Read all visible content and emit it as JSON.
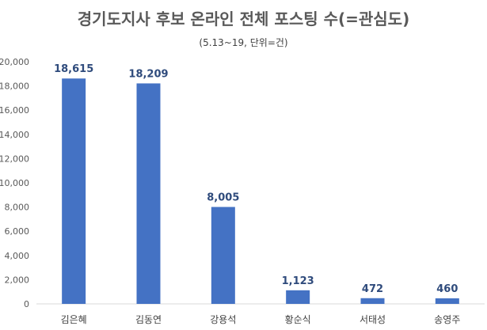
{
  "chart_data": {
    "type": "bar",
    "title": "경기도지사 후보 온라인 전체 포스팅 수(=관심도)",
    "subtitle": "(5.13~19, 단위=건)",
    "categories": [
      "김은혜",
      "김동연",
      "강용석",
      "황순식",
      "서태성",
      "송영주"
    ],
    "values": [
      18615,
      18209,
      8005,
      1123,
      472,
      460
    ],
    "value_labels": [
      "18,615",
      "18,209",
      "8,005",
      "1,123",
      "472",
      "460"
    ],
    "ylim": [
      0,
      20000
    ],
    "yticks": [
      0,
      2000,
      4000,
      6000,
      8000,
      10000,
      12000,
      14000,
      16000,
      18000,
      20000
    ],
    "ytick_labels": [
      "0",
      "2,000",
      "4,000",
      "6,000",
      "8,000",
      "10,000",
      "12,000",
      "14,000",
      "16,000",
      "18,000",
      "20,000"
    ],
    "grid": false,
    "legend": "none",
    "bar_color": "#4472C4",
    "label_color": "#2F4B7C"
  }
}
